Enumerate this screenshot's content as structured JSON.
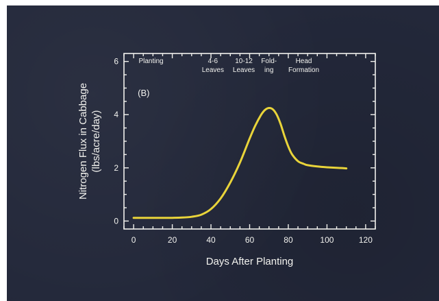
{
  "colors": {
    "background": "#23283a",
    "axes": "#f2f2ee",
    "curve": "#e9d43a"
  },
  "chart_data": {
    "type": "line",
    "panel_label": "(B)",
    "xlabel": "Days After Planting",
    "ylabel_lines": [
      "Nitrogen Flux in Cabbage",
      "(lbs/acre/day)"
    ],
    "xlim": [
      -5,
      125
    ],
    "ylim": [
      -0.3,
      6.3
    ],
    "x_ticks": [
      0,
      20,
      40,
      60,
      80,
      100,
      120
    ],
    "y_ticks": [
      0,
      2,
      4,
      6
    ],
    "stages": [
      {
        "lines": [
          "Planting"
        ],
        "x": 9
      },
      {
        "lines": [
          "4-6",
          "Leaves"
        ],
        "x": 41
      },
      {
        "lines": [
          "10-12",
          "Leaves"
        ],
        "x": 57
      },
      {
        "lines": [
          "Fold-",
          "ing"
        ],
        "x": 70
      },
      {
        "lines": [
          "Head",
          "Formation"
        ],
        "x": 88
      }
    ],
    "series": [
      {
        "x": [
          0,
          10,
          20,
          25,
          30,
          35,
          40,
          45,
          50,
          55,
          60,
          63,
          66,
          68,
          70,
          72,
          74,
          76,
          78,
          80,
          82,
          85,
          88,
          90,
          95,
          100,
          105,
          110
        ],
        "y": [
          0.12,
          0.12,
          0.12,
          0.13,
          0.16,
          0.24,
          0.45,
          0.85,
          1.45,
          2.2,
          3.1,
          3.6,
          4.0,
          4.18,
          4.25,
          4.2,
          4.0,
          3.65,
          3.2,
          2.8,
          2.5,
          2.25,
          2.15,
          2.1,
          2.05,
          2.02,
          2.0,
          1.98
        ]
      }
    ]
  }
}
